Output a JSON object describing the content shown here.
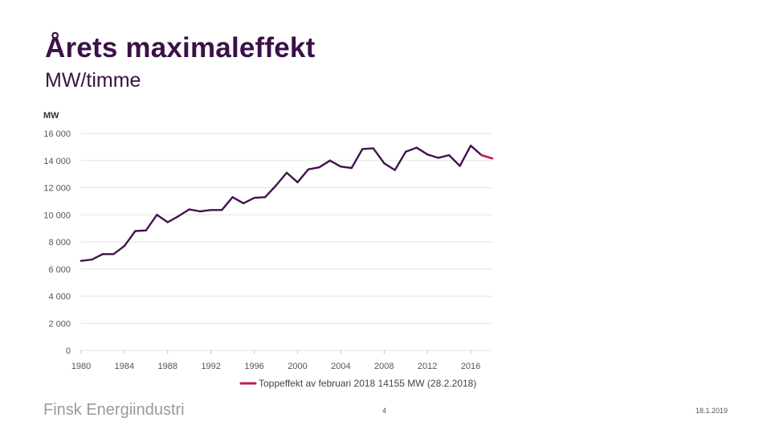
{
  "slide": {
    "title": "Årets maximaleffekt",
    "subtitle": "MW/timme",
    "brand": "Finsk Energiindustri",
    "page_number": "4",
    "date": "18.1.2019"
  },
  "colors": {
    "title": "#3b1146",
    "series": "#44124f",
    "highlight": "#c2185b",
    "grid": "#e3e3e3",
    "axis_text": "#555555"
  },
  "chart_data": {
    "type": "line",
    "ylabel": "MW",
    "xlabel": "",
    "ylim": [
      0,
      16000
    ],
    "yticks": [
      0,
      2000,
      4000,
      6000,
      8000,
      10000,
      12000,
      14000,
      16000
    ],
    "ytick_labels": [
      "0",
      "2 000",
      "4 000",
      "6 000",
      "8 000",
      "10 000",
      "12 000",
      "14 000",
      "16 000"
    ],
    "xlim": [
      1980,
      2018
    ],
    "xticks": [
      1980,
      1984,
      1988,
      1992,
      1996,
      2000,
      2004,
      2008,
      2012,
      2016
    ],
    "grid": true,
    "series": [
      {
        "name": "Årets maximaleffekt",
        "x": [
          1980,
          1981,
          1982,
          1983,
          1984,
          1985,
          1986,
          1987,
          1988,
          1989,
          1990,
          1991,
          1992,
          1993,
          1994,
          1995,
          1996,
          1997,
          1998,
          1999,
          2000,
          2001,
          2002,
          2003,
          2004,
          2005,
          2006,
          2007,
          2008,
          2009,
          2010,
          2011,
          2012,
          2013,
          2014,
          2015,
          2016,
          2017
        ],
        "values": [
          6600,
          6700,
          7100,
          7100,
          7700,
          8800,
          8850,
          10000,
          9450,
          9900,
          10400,
          10250,
          10350,
          10350,
          11300,
          10850,
          11250,
          11300,
          12150,
          13100,
          12400,
          13350,
          13500,
          14000,
          13550,
          13450,
          14850,
          14900,
          13800,
          13300,
          14650,
          14950,
          14450,
          14200,
          14400,
          13600,
          15100,
          14400
        ]
      },
      {
        "name": "Toppeffekt av februari 2018 14155 MW (28.2.2018)",
        "x": [
          2017,
          2018
        ],
        "values": [
          14400,
          14155
        ],
        "highlight": true
      }
    ],
    "legend": {
      "label": "Toppeffekt av februari 2018 14155 MW (28.2.2018)",
      "placement": "bottom"
    }
  }
}
